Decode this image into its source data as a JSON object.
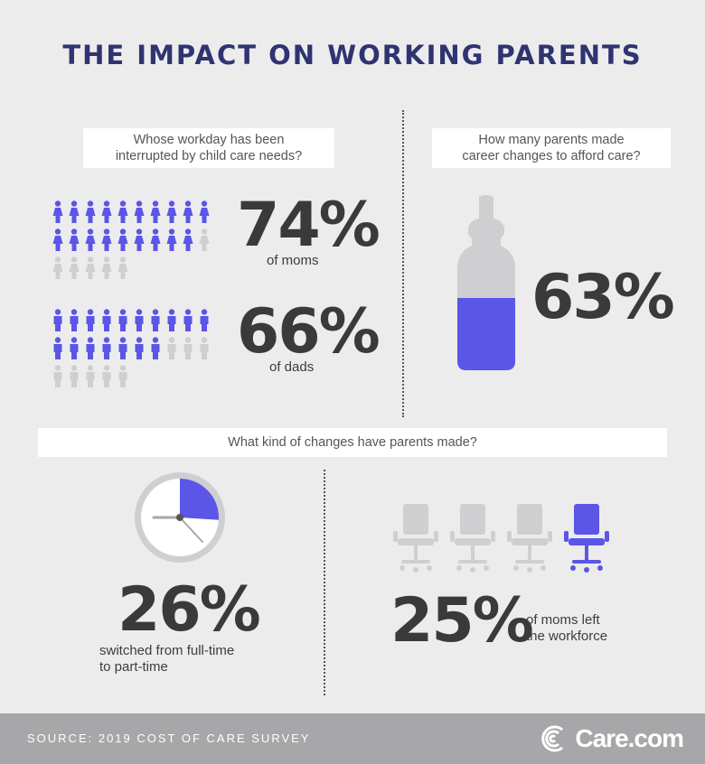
{
  "title": "THE IMPACT ON WORKING PARENTS",
  "interrupted": {
    "question_line1": "Whose workday has been",
    "question_line2": "interrupted by child care needs?",
    "moms_percent": "74%",
    "moms_label": "of moms",
    "moms_value": 74,
    "dads_percent": "66%",
    "dads_label": "of dads",
    "dads_value": 66
  },
  "career": {
    "question_line1": "How many parents made",
    "question_line2": "career changes to afford care?",
    "percent": "63%",
    "value": 63
  },
  "changes": {
    "question": "What kind of changes have parents made?",
    "parttime_percent": "26%",
    "parttime_line1": "switched from full-time",
    "parttime_line2": "to part-time",
    "parttime_value": 26,
    "left_percent": "25%",
    "left_line1": "of moms left",
    "left_line2": "the workforce",
    "left_value": 25
  },
  "footer": {
    "source": "SOURCE: 2019 COST OF CARE SURVEY",
    "logo": "Care.com"
  },
  "colors": {
    "accent": "#5b55e8",
    "inactive": "#cfcfd1",
    "title": "#2f3471",
    "text": "#3a3a3a"
  }
}
